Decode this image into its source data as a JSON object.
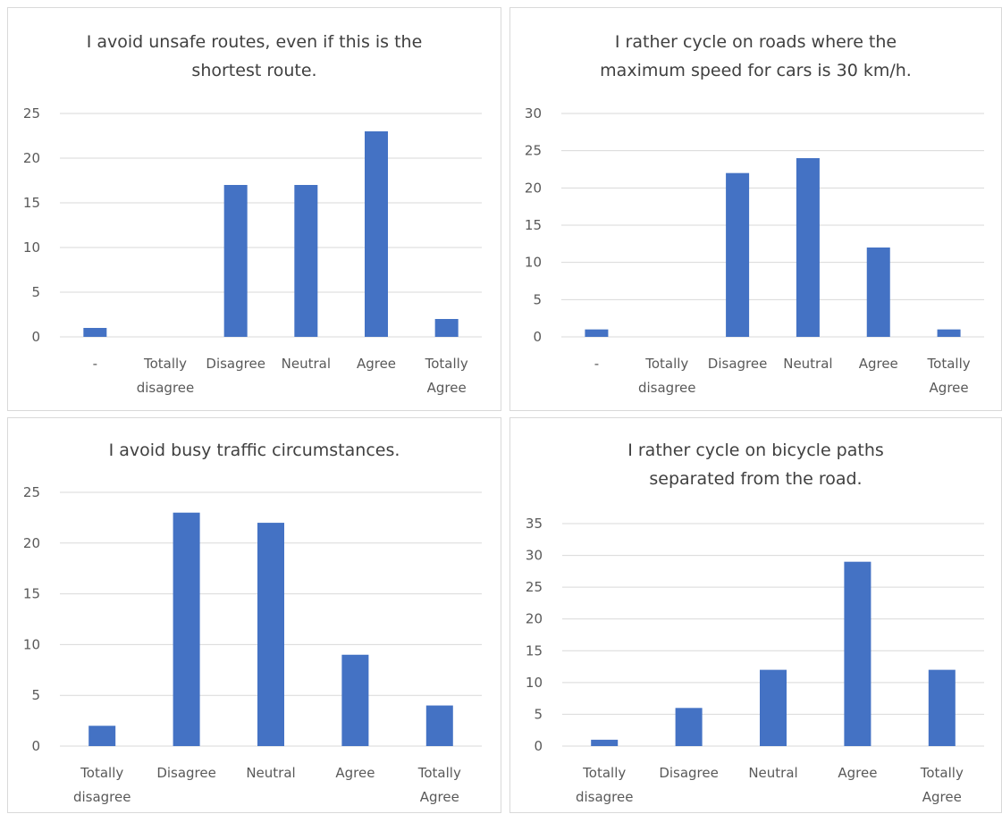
{
  "chart_data": [
    {
      "type": "bar",
      "title_lines": [
        "I avoid unsafe routes, even if this is the",
        "shortest route."
      ],
      "categories": [
        "-",
        "Totally disagree",
        "Disagree",
        "Neutral",
        "Agree",
        "Totally Agree"
      ],
      "category_lines": [
        [
          "-"
        ],
        [
          "Totally",
          "disagree"
        ],
        [
          "Disagree"
        ],
        [
          "Neutral"
        ],
        [
          "Agree"
        ],
        [
          "Totally",
          "Agree"
        ]
      ],
      "values": [
        1,
        0,
        17,
        17,
        23,
        2
      ],
      "ylim": [
        0,
        25
      ],
      "yticks": [
        0,
        5,
        10,
        15,
        20,
        25
      ],
      "grid": true,
      "legend": "none",
      "color": "#4472c4"
    },
    {
      "type": "bar",
      "title_lines": [
        "I rather cycle on roads where the",
        "maximum speed for cars is 30 km/h."
      ],
      "categories": [
        "-",
        "Totally disagree",
        "Disagree",
        "Neutral",
        "Agree",
        "Totally Agree"
      ],
      "category_lines": [
        [
          "-"
        ],
        [
          "Totally",
          "disagree"
        ],
        [
          "Disagree"
        ],
        [
          "Neutral"
        ],
        [
          "Agree"
        ],
        [
          "Totally",
          "Agree"
        ]
      ],
      "values": [
        1,
        0,
        22,
        24,
        12,
        1
      ],
      "ylim": [
        0,
        30
      ],
      "yticks": [
        0,
        5,
        10,
        15,
        20,
        25,
        30
      ],
      "grid": true,
      "legend": "none",
      "color": "#4472c4"
    },
    {
      "type": "bar",
      "title_lines": [
        "I avoid busy traffic circumstances."
      ],
      "categories": [
        "Totally disagree",
        "Disagree",
        "Neutral",
        "Agree",
        "Totally Agree"
      ],
      "category_lines": [
        [
          "Totally",
          "disagree"
        ],
        [
          "Disagree"
        ],
        [
          "Neutral"
        ],
        [
          "Agree"
        ],
        [
          "Totally",
          "Agree"
        ]
      ],
      "values": [
        2,
        23,
        22,
        9,
        4
      ],
      "ylim": [
        0,
        25
      ],
      "yticks": [
        0,
        5,
        10,
        15,
        20,
        25
      ],
      "grid": true,
      "legend": "none",
      "color": "#4472c4"
    },
    {
      "type": "bar",
      "title_lines": [
        "I rather cycle on bicycle paths",
        "separated from the road."
      ],
      "categories": [
        "Totally disagree",
        "Disagree",
        "Neutral",
        "Agree",
        "Totally Agree"
      ],
      "category_lines": [
        [
          "Totally",
          "disagree"
        ],
        [
          "Disagree"
        ],
        [
          "Neutral"
        ],
        [
          "Agree"
        ],
        [
          "Totally",
          "Agree"
        ]
      ],
      "values": [
        1,
        6,
        12,
        29,
        12
      ],
      "ylim": [
        0,
        35
      ],
      "yticks": [
        0,
        5,
        10,
        15,
        20,
        25,
        30,
        35
      ],
      "grid": true,
      "legend": "none",
      "color": "#4472c4"
    }
  ]
}
